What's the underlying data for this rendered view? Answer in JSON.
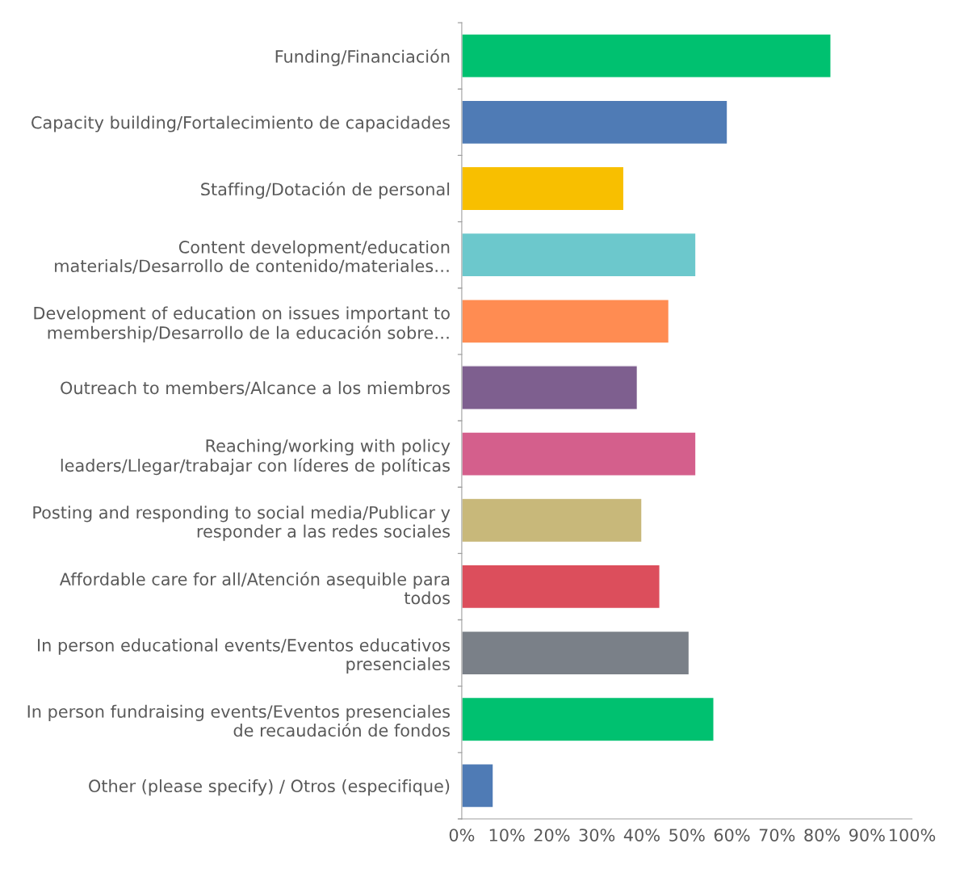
{
  "chart_data": {
    "type": "bar",
    "orientation": "horizontal",
    "categories": [
      "Funding/Financiación",
      "Capacity building/Fortalecimiento de capacidades",
      "Staffing/Dotación de personal",
      "Content development/education\nmaterials/Desarrollo de contenido/materiales…",
      "Development of education on issues important to\nmembership/Desarrollo de la educación sobre…",
      "Outreach to members/Alcance a los miembros",
      "Reaching/working with policy\nleaders/Llegar/trabajar con líderes de políticas",
      "Posting and responding to social media/Publicar y\nresponder a las redes sociales",
      "Affordable care for all/Atención asequible para\ntodos",
      "In person educational events/Eventos educativos\npresenciales",
      "In person fundraising events/Eventos presenciales\nde recaudación de fondos",
      "Other (please specify) / Otros (especifique)"
    ],
    "values": [
      82,
      59,
      36,
      52,
      46,
      39,
      52,
      40,
      44,
      50.5,
      56,
      7
    ],
    "colors": [
      "#00c170",
      "#4f7bb5",
      "#f8bf00",
      "#6cc8cc",
      "#ff8c52",
      "#7e5f8f",
      "#d45f8c",
      "#c8b87a",
      "#dc4e5c",
      "#7a8088",
      "#00c170",
      "#4f7bb5"
    ],
    "xlim": [
      0,
      100
    ],
    "xticks": [
      {
        "value": 0,
        "label": "0%"
      },
      {
        "value": 10,
        "label": "10%"
      },
      {
        "value": 20,
        "label": "20%"
      },
      {
        "value": 30,
        "label": "30%"
      },
      {
        "value": 40,
        "label": "40%"
      },
      {
        "value": 50,
        "label": "50%"
      },
      {
        "value": 60,
        "label": "60%"
      },
      {
        "value": 70,
        "label": "70%"
      },
      {
        "value": 80,
        "label": "80%"
      },
      {
        "value": 90,
        "label": "90%"
      },
      {
        "value": 100,
        "label": "100%"
      }
    ],
    "grid": false,
    "legend": false
  }
}
